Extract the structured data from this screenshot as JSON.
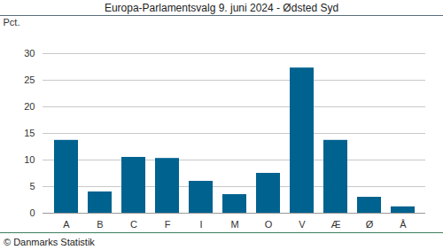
{
  "chart_data": {
    "type": "bar",
    "title": "Europa-Parlamentsvalg 9. juni 2024 - Ødsted Syd",
    "y_label": "Pct.",
    "caption": "© Danmarks Statistik",
    "categories": [
      "A",
      "B",
      "C",
      "F",
      "I",
      "M",
      "O",
      "V",
      "Æ",
      "Ø",
      "Å"
    ],
    "values": [
      13.7,
      4.0,
      10.5,
      10.3,
      6.0,
      3.5,
      7.5,
      27.3,
      13.7,
      3.0,
      1.2
    ],
    "color": "#00628f",
    "ylim": [
      0,
      30
    ],
    "yticks": [
      0,
      5,
      10,
      15,
      20,
      25,
      30
    ],
    "grid": true
  }
}
